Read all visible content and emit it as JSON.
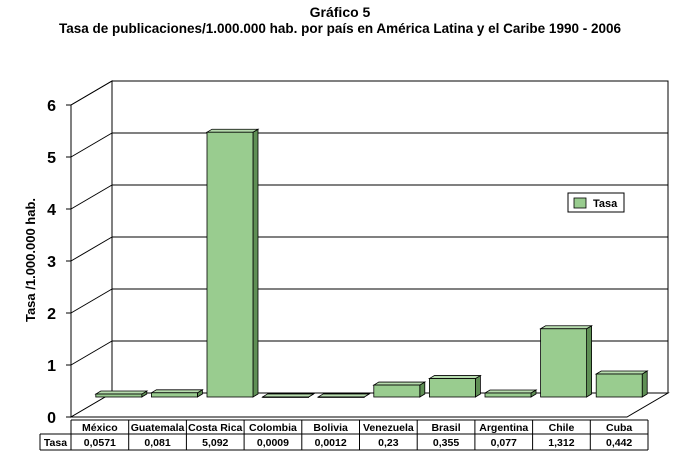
{
  "chart_data": {
    "type": "bar",
    "title": "Gráfico 5",
    "subtitle": "Tasa de publicaciones/1.000.000 hab. por país en América Latina y el Caribe 1990 - 2006",
    "xlabel": "",
    "ylabel": "Tasa /1.000.000 hab.",
    "ylim": [
      0,
      6
    ],
    "y_ticks": [
      "0",
      "1",
      "2",
      "3",
      "4",
      "5",
      "6"
    ],
    "grid": true,
    "legend_position": "right",
    "categories": [
      "México",
      "Guatemala",
      "Costa Rica",
      "Colombia",
      "Bolivia",
      "Venezuela",
      "Brasil",
      "Argentina",
      "Chile",
      "Cuba"
    ],
    "series": [
      {
        "name": "Tasa",
        "color": "#99cc8f",
        "values": [
          0.0571,
          0.081,
          5.092,
          0.0009,
          0.0012,
          0.23,
          0.355,
          0.077,
          1.312,
          0.442
        ],
        "value_labels": [
          "0,0571",
          "0,081",
          "5,092",
          "0,0009",
          "0,0012",
          "0,23",
          "0,355",
          "0,077",
          "1,312",
          "0,442"
        ]
      }
    ],
    "table": {
      "row_header": "Tasa"
    }
  }
}
